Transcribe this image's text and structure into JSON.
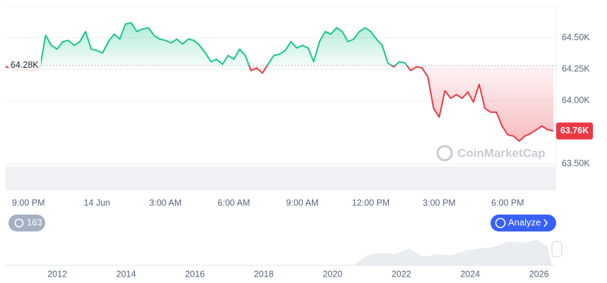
{
  "chart_data": {
    "type": "line",
    "categories": [
      null,
      null,
      null,
      null,
      "9:00 PM",
      null,
      null,
      null,
      null,
      null,
      null,
      null,
      null,
      null,
      null,
      null,
      "14 Jun",
      null,
      null,
      null,
      null,
      null,
      null,
      null,
      null,
      null,
      null,
      null,
      "3:00 AM",
      null,
      null,
      null,
      null,
      null,
      null,
      null,
      null,
      null,
      null,
      null,
      "6:00 AM",
      null,
      null,
      null,
      null,
      null,
      null,
      null,
      null,
      null,
      null,
      null,
      "9:00 AM",
      null,
      null,
      null,
      null,
      null,
      null,
      null,
      null,
      null,
      null,
      null,
      "12:00 PM",
      null,
      null,
      null,
      null,
      null,
      null,
      null,
      null,
      null,
      null,
      null,
      "3:00 PM",
      null,
      null,
      null,
      null,
      null,
      null,
      null,
      null,
      null,
      null,
      null,
      "6:00 PM",
      null,
      null,
      null,
      null,
      null,
      null,
      null,
      null
    ],
    "values": [
      64.27,
      64.26,
      64.24,
      64.25,
      64.24,
      64.24,
      64.26,
      64.52,
      64.44,
      64.41,
      64.47,
      64.48,
      64.44,
      64.47,
      64.55,
      64.41,
      64.4,
      64.38,
      64.47,
      64.53,
      64.49,
      64.61,
      64.62,
      64.55,
      64.57,
      64.58,
      64.52,
      64.49,
      64.48,
      64.46,
      64.49,
      64.45,
      64.49,
      64.48,
      64.44,
      64.38,
      64.31,
      64.33,
      64.29,
      64.36,
      64.33,
      64.41,
      64.36,
      64.24,
      64.26,
      64.22,
      64.29,
      64.36,
      64.37,
      64.4,
      64.47,
      64.42,
      64.44,
      64.42,
      64.31,
      64.47,
      64.55,
      64.53,
      64.58,
      64.55,
      64.47,
      64.49,
      64.55,
      64.58,
      64.55,
      64.49,
      64.44,
      64.3,
      64.27,
      64.31,
      64.3,
      64.24,
      64.27,
      64.26,
      64.19,
      63.94,
      63.87,
      64.08,
      64.02,
      64.05,
      64.02,
      64.07,
      63.99,
      64.13,
      63.94,
      63.91,
      63.91,
      63.8,
      63.73,
      63.72,
      63.68,
      63.72,
      63.74,
      63.77,
      63.8,
      63.77,
      63.76
    ],
    "up_color": "#16c784",
    "down_color": "#ea3943",
    "ylim": [
      63.45,
      64.75
    ],
    "yticks": [
      {
        "value": 63.5,
        "label": "63.50K"
      },
      {
        "value": 64.0,
        "label": "64.00K"
      },
      {
        "value": 64.25,
        "label": "64.25K"
      },
      {
        "value": 64.5,
        "label": "64.50K"
      }
    ],
    "grid": true,
    "baseline": {
      "value": 64.28,
      "label": "64.28K"
    },
    "last_price": {
      "value": 63.76,
      "label": "63.76K"
    },
    "watermark": "CoinMarketCap"
  },
  "controls": {
    "history_count": 163,
    "analyze": "Analyze"
  },
  "navigator": {
    "xlim": [
      2010.5,
      2026.5
    ],
    "xticks": [
      2012,
      2014,
      2016,
      2018,
      2020,
      2022,
      2024,
      2026
    ]
  }
}
